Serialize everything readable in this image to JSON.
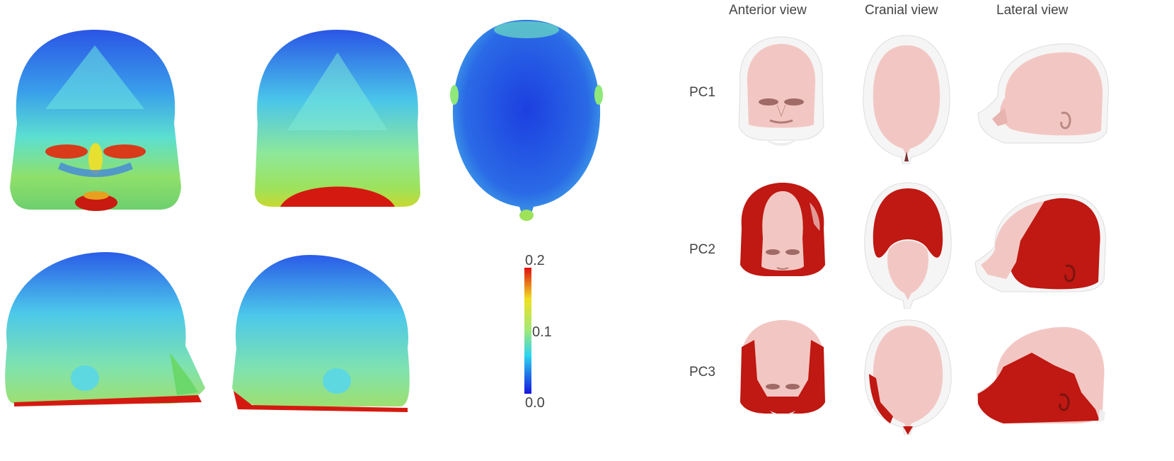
{
  "figure": {
    "colorbar": {
      "max_label": "0.2",
      "mid_label": "0.1",
      "min_label": "0.0",
      "colors": [
        "#1515e0",
        "#2ad4f0",
        "#9fe87a",
        "#f0e020",
        "#e01010"
      ]
    },
    "columns": [
      "Anterior view",
      "Cranial view",
      "Lateral view"
    ],
    "rows": [
      "PC1",
      "PC2",
      "PC3"
    ],
    "colors": {
      "skin": "#f2c7c3",
      "overlay": "#f5f5f5",
      "variation": "#c01812"
    }
  }
}
